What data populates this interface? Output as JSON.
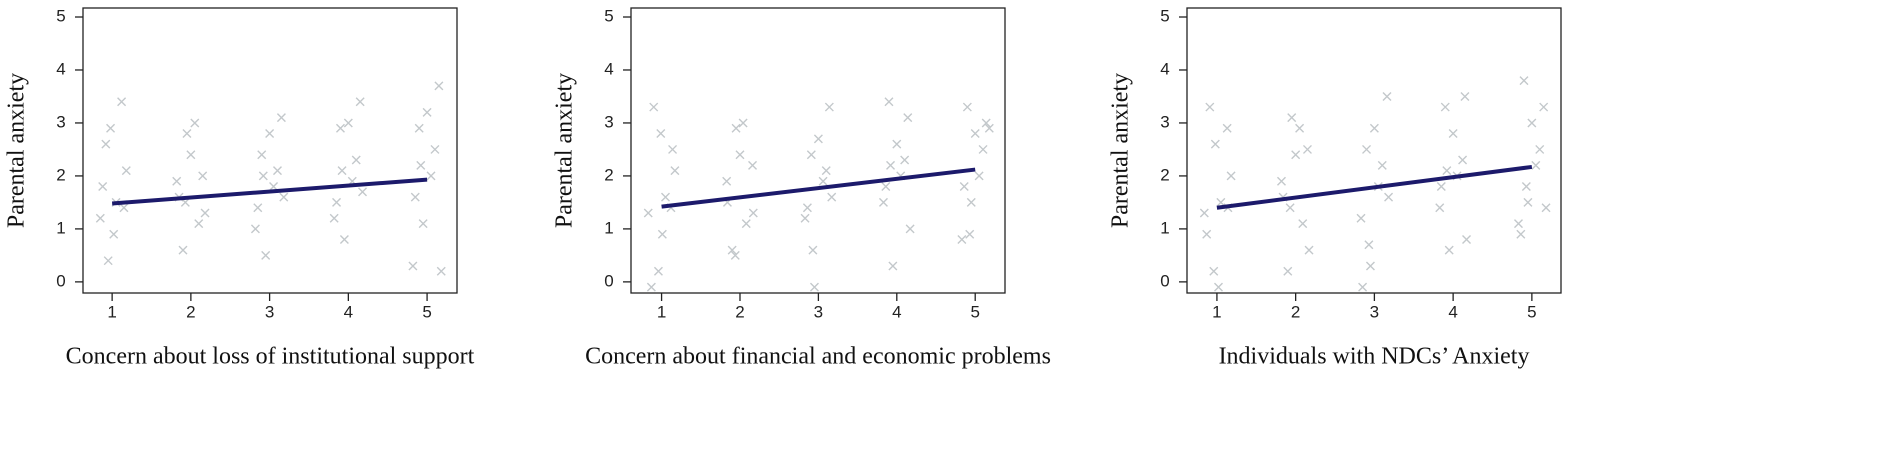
{
  "chart_data": [
    {
      "type": "scatter",
      "xlabel": "Concern about loss of institutional support",
      "ylabel": "Parental anxiety",
      "xlim": [
        0.63,
        5.38
      ],
      "ylim": [
        -0.21,
        5.17
      ],
      "xticks": [
        1,
        2,
        3,
        4,
        5
      ],
      "yticks": [
        0,
        1,
        2,
        3,
        4,
        5
      ],
      "series": [
        {
          "color": "#c3c8cb",
          "marker": "x",
          "x": [
            0.85,
            0.92,
            1.05,
            1.12,
            0.95,
            1.18,
            0.88,
            1.02,
            1.15,
            0.98,
            1.85,
            1.95,
            2.1,
            2.15,
            1.9,
            2.05,
            1.82,
            2.18,
            2.0,
            1.93,
            2.82,
            2.9,
            3.05,
            3.15,
            2.95,
            3.1,
            2.85,
            3.0,
            3.18,
            2.92,
            3.82,
            3.9,
            4.05,
            4.15,
            3.95,
            4.1,
            3.85,
            4.0,
            4.18,
            3.92,
            4.82,
            4.9,
            5.05,
            5.15,
            4.95,
            5.1,
            4.85,
            5.0,
            5.18,
            4.92
          ],
          "values": [
            1.2,
            2.6,
            1.5,
            3.4,
            0.4,
            2.1,
            1.8,
            0.9,
            1.4,
            2.9,
            1.6,
            2.8,
            1.1,
            2.0,
            0.6,
            3.0,
            1.9,
            1.3,
            2.4,
            1.5,
            1.0,
            2.4,
            1.8,
            3.1,
            0.5,
            2.1,
            1.4,
            2.8,
            1.6,
            2.0,
            1.2,
            2.9,
            1.9,
            3.4,
            0.8,
            2.3,
            1.5,
            3.0,
            1.7,
            2.1,
            0.3,
            2.9,
            2.0,
            3.7,
            1.1,
            2.5,
            1.6,
            3.2,
            0.2,
            2.2
          ]
        }
      ],
      "fit": {
        "color": "#1c1a6b",
        "x": [
          1,
          5
        ],
        "values": [
          1.48,
          1.93
        ]
      }
    },
    {
      "type": "scatter",
      "xlabel": "Concern about financial and economic problems",
      "ylabel": "Parental anxiety",
      "xlim": [
        0.61,
        5.38
      ],
      "ylim": [
        -0.21,
        5.17
      ],
      "xticks": [
        1,
        2,
        3,
        4,
        5
      ],
      "yticks": [
        0,
        1,
        2,
        3,
        4,
        5
      ],
      "series": [
        {
          "color": "#c3c8cb",
          "marker": "x",
          "x": [
            0.83,
            0.9,
            1.05,
            1.14,
            0.96,
            1.17,
            0.87,
            1.01,
            1.12,
            0.99,
            1.84,
            1.95,
            2.08,
            2.16,
            1.9,
            2.04,
            1.83,
            2.17,
            2.0,
            1.94,
            2.83,
            2.91,
            3.06,
            3.14,
            2.95,
            3.1,
            2.86,
            3.0,
            3.17,
            2.93,
            3.83,
            3.9,
            4.05,
            4.14,
            3.95,
            4.1,
            3.86,
            4.0,
            4.17,
            3.92,
            4.83,
            4.9,
            5.05,
            5.14,
            4.95,
            5.1,
            4.86,
            5.0,
            5.18,
            4.93
          ],
          "values": [
            1.3,
            3.3,
            1.6,
            2.5,
            0.2,
            2.1,
            -0.1,
            0.9,
            1.4,
            2.8,
            1.5,
            2.9,
            1.1,
            2.2,
            0.6,
            3.0,
            1.9,
            1.3,
            2.4,
            0.5,
            1.2,
            2.4,
            1.9,
            3.3,
            -0.1,
            2.1,
            1.4,
            2.7,
            1.6,
            0.6,
            1.5,
            3.4,
            2.0,
            3.1,
            0.3,
            2.3,
            1.8,
            2.6,
            1.0,
            2.2,
            0.8,
            3.3,
            2.0,
            3.0,
            1.5,
            2.5,
            1.8,
            2.8,
            2.9,
            0.9
          ]
        }
      ],
      "fit": {
        "color": "#1c1a6b",
        "x": [
          1,
          5
        ],
        "values": [
          1.42,
          2.12
        ]
      }
    },
    {
      "type": "scatter",
      "xlabel": "Individuals with NDCs’ Anxiety",
      "ylabel": "Parental anxiety",
      "xlim": [
        0.62,
        5.37
      ],
      "ylim": [
        -0.21,
        5.17
      ],
      "xticks": [
        1,
        2,
        3,
        4,
        5
      ],
      "yticks": [
        0,
        1,
        2,
        3,
        4,
        5
      ],
      "series": [
        {
          "color": "#c3c8cb",
          "marker": "x",
          "x": [
            0.84,
            0.91,
            1.05,
            1.13,
            0.96,
            1.18,
            0.87,
            1.02,
            1.14,
            0.98,
            1.84,
            1.95,
            2.09,
            2.15,
            1.9,
            2.05,
            1.82,
            2.17,
            2.0,
            1.93,
            2.83,
            2.9,
            3.05,
            3.16,
            2.95,
            3.1,
            2.85,
            3.0,
            3.18,
            2.93,
            3.83,
            3.9,
            4.05,
            4.15,
            3.95,
            4.12,
            3.85,
            4.0,
            4.17,
            3.92,
            4.83,
            4.9,
            5.05,
            5.15,
            4.95,
            5.1,
            4.86,
            5.0,
            5.18,
            4.93
          ],
          "values": [
            1.3,
            3.3,
            1.5,
            2.9,
            0.2,
            2.0,
            0.9,
            -0.1,
            1.4,
            2.6,
            1.6,
            3.1,
            1.1,
            2.5,
            0.2,
            2.9,
            1.9,
            0.6,
            2.4,
            1.4,
            1.2,
            2.5,
            1.8,
            3.5,
            0.3,
            2.2,
            -0.1,
            2.9,
            1.6,
            0.7,
            1.4,
            3.3,
            2.0,
            3.5,
            0.6,
            2.3,
            1.8,
            2.8,
            0.8,
            2.1,
            1.1,
            3.8,
            2.2,
            3.3,
            1.5,
            2.5,
            0.9,
            3.0,
            1.4,
            1.8
          ]
        }
      ],
      "fit": {
        "color": "#1c1a6b",
        "x": [
          1,
          5
        ],
        "values": [
          1.4,
          2.17
        ]
      }
    }
  ]
}
